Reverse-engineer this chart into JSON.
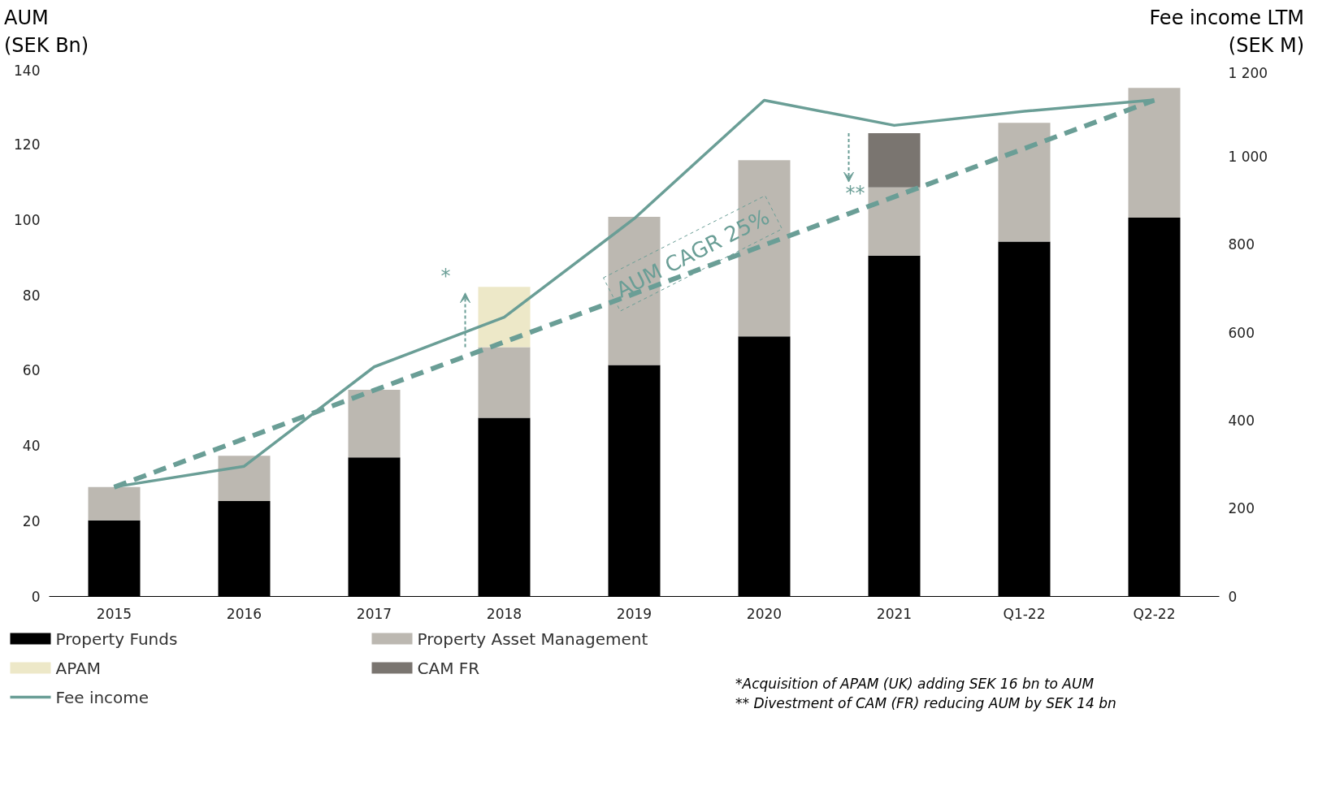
{
  "chart_data": {
    "type": "bar",
    "stacked": true,
    "ylabel": "AUM\n(SEK Bn)",
    "y2label": "Fee income LTM\n(SEK M)",
    "categories": [
      "2015",
      "2016",
      "2017",
      "2018",
      "2019",
      "2020",
      "2021",
      "Q1-22",
      "Q2-22"
    ],
    "series": [
      {
        "name": "Property Funds",
        "color": "#000000",
        "values": [
          20.2,
          25.3,
          36.9,
          47.4,
          61.4,
          69.0,
          90.4,
          94.1,
          100.5
        ]
      },
      {
        "name": "Property Asset Management",
        "color": "#bcb8b1",
        "values": [
          8.8,
          12.0,
          17.9,
          18.7,
          39.3,
          46.7,
          18.1,
          31.5,
          34.4
        ]
      },
      {
        "name": "APAM",
        "color": "#ede8c8",
        "values": [
          null,
          null,
          null,
          16.0,
          null,
          null,
          null,
          null,
          null
        ]
      },
      {
        "name": "CAM FR",
        "color": "#7a7570",
        "values": [
          null,
          null,
          null,
          null,
          null,
          null,
          14.4,
          null,
          null
        ]
      },
      {
        "name": "Fee income",
        "type": "line",
        "axis": "y2",
        "color": "#6a9e96",
        "values": [
          249,
          296,
          522,
          635,
          859,
          1128,
          1071,
          1103,
          1129
        ]
      },
      {
        "type": "line",
        "color": "#6a9e96",
        "line_style": "dashed",
        "values": [
          29.0,
          41.8,
          54.7,
          67.5,
          80.3,
          93.2,
          106.0,
          118.8,
          131.6
        ]
      }
    ],
    "ylim": [
      0,
      140
    ],
    "yticks": [
      0,
      20,
      40,
      60,
      80,
      100,
      120,
      140
    ],
    "y2lim": [
      0,
      1200
    ],
    "y2ticks": [
      0,
      200,
      400,
      600,
      800,
      {
        "value": 1000,
        "label": "1 000"
      },
      {
        "value": 1200,
        "label": "1 200"
      }
    ],
    "grid": false,
    "legend": "bottom",
    "annotations": [
      "AUM CAGR 25%",
      "*",
      "**",
      "*Acquisition of APAM (UK) adding SEK 16 bn to AUM",
      "** Divestment of CAM (FR) reducing AUM by SEK 14 bn"
    ]
  }
}
